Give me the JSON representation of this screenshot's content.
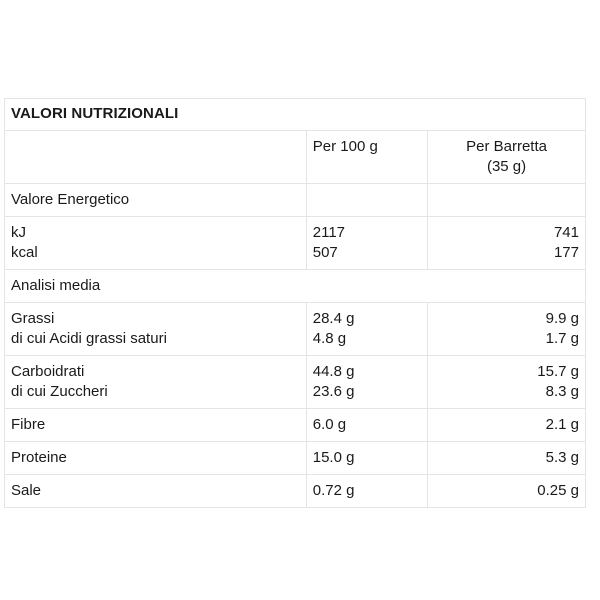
{
  "table": {
    "title": "VALORI NUTRIZIONALI",
    "headers": {
      "per_100g": "Per 100 g",
      "per_bar_line1": "Per Barretta",
      "per_bar_line2": "(35 g)"
    },
    "sections": {
      "energy": "Valore Energetico",
      "analysis": "Analisi media"
    },
    "rows": {
      "kj": {
        "label": "kJ",
        "per_100g": "2117",
        "per_bar": "741"
      },
      "kcal": {
        "label": "kcal",
        "per_100g": "507",
        "per_bar": "177"
      },
      "fat": {
        "label": "Grassi",
        "per_100g": "28.4 g",
        "per_bar": "9.9 g"
      },
      "saturated": {
        "label": "di cui Acidi grassi saturi",
        "per_100g": "4.8 g",
        "per_bar": "1.7 g"
      },
      "carbs": {
        "label": "Carboidrati",
        "per_100g": "44.8 g",
        "per_bar": "15.7 g"
      },
      "sugars": {
        "label": "di cui Zuccheri",
        "per_100g": "23.6 g",
        "per_bar": "8.3 g"
      },
      "fibre": {
        "label": "Fibre",
        "per_100g": "6.0 g",
        "per_bar": "2.1 g"
      },
      "protein": {
        "label": "Proteine",
        "per_100g": "15.0 g",
        "per_bar": "5.3 g"
      },
      "salt": {
        "label": "Sale",
        "per_100g": "0.72 g",
        "per_bar": "0.25 g"
      }
    }
  }
}
